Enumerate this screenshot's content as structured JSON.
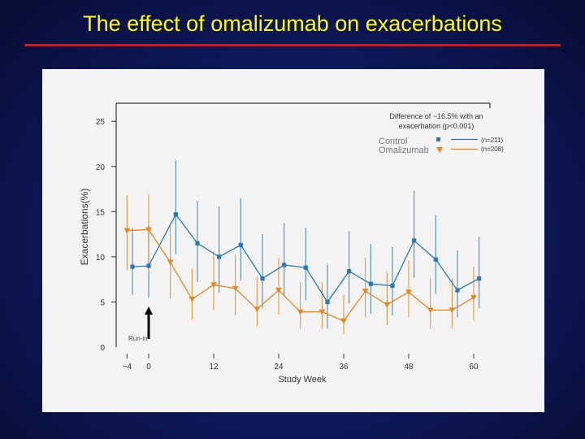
{
  "slide": {
    "title": "The effect of omalizumab on exacerbations"
  },
  "colors": {
    "control": "#2a78b8",
    "omalizumab": "#e8851e",
    "title": "#ffff00",
    "rule": "#cc1a1a"
  },
  "chart_data": {
    "type": "line",
    "title": "",
    "xlabel": "Study Week",
    "ylabel": "Exacerbations(%)",
    "xlim": [
      -6,
      63
    ],
    "ylim": [
      0,
      27
    ],
    "x_ticks": [
      -4,
      0,
      12,
      24,
      36,
      48,
      60
    ],
    "x_tick_labels": [
      "−4",
      "0",
      "12",
      "24",
      "36",
      "48",
      "60"
    ],
    "y_ticks": [
      0,
      5,
      10,
      15,
      20,
      25
    ],
    "y_tick_labels": [
      "0",
      "5",
      "10",
      "15",
      "20",
      "25"
    ],
    "annotation": {
      "line1": "Difference of −16.5% with an",
      "line2": "exacerbation (p<0.001)"
    },
    "run_in_label": "Run-in",
    "run_in_arrow_x": 0,
    "series": [
      {
        "name": "Control",
        "n_label": "(n=211)",
        "marker": "square",
        "x": [
          -3,
          0,
          5,
          9,
          13,
          17,
          21,
          25,
          29,
          33,
          37,
          41,
          45,
          49,
          53,
          57,
          61
        ],
        "values": [
          8.9,
          9.0,
          14.7,
          11.5,
          10.0,
          11.3,
          7.6,
          9.1,
          8.8,
          5.0,
          8.4,
          7.0,
          6.8,
          11.8,
          9.7,
          6.3,
          7.6
        ],
        "err_low": [
          5.8,
          5.5,
          10.3,
          7.2,
          6.0,
          7.4,
          4.3,
          5.6,
          5.2,
          2.1,
          4.8,
          3.7,
          3.5,
          7.7,
          5.9,
          3.3,
          4.3
        ],
        "err_high": [
          13.2,
          13.5,
          20.7,
          16.2,
          15.6,
          16.5,
          12.5,
          13.7,
          13.2,
          9.2,
          12.8,
          11.4,
          11.1,
          17.3,
          14.6,
          10.7,
          12.2
        ]
      },
      {
        "name": "Omalizumab",
        "n_label": "(n=208)",
        "marker": "triangle-down",
        "x": [
          -4,
          0,
          4,
          8,
          12,
          16,
          20,
          24,
          28,
          32,
          36,
          40,
          44,
          48,
          52,
          56,
          60
        ],
        "values": [
          12.9,
          13.0,
          9.4,
          5.3,
          6.9,
          6.5,
          4.2,
          6.3,
          3.9,
          3.9,
          2.9,
          6.2,
          4.7,
          6.1,
          4.1,
          4.1,
          5.5
        ],
        "err_low": [
          8.5,
          8.4,
          5.4,
          3.0,
          4.1,
          3.5,
          2.3,
          3.6,
          2.0,
          2.0,
          1.4,
          3.3,
          2.4,
          3.3,
          2.1,
          2.1,
          3.0
        ],
        "err_high": [
          16.8,
          16.9,
          13.5,
          8.7,
          10.6,
          10.2,
          7.8,
          9.9,
          7.2,
          7.2,
          5.8,
          9.9,
          8.3,
          9.6,
          7.6,
          7.6,
          8.9
        ]
      }
    ]
  }
}
